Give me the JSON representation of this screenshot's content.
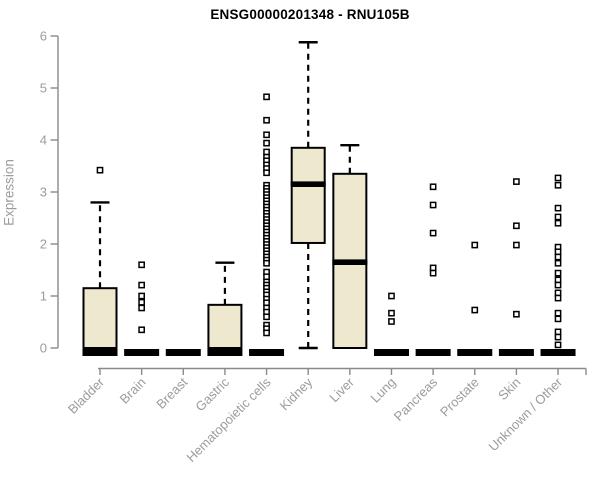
{
  "chart_data": {
    "type": "boxplot",
    "title": "ENSG00000201348 - RNU105B",
    "ylabel": "Expression",
    "xlabel": "",
    "ylim": [
      0,
      6
    ],
    "yticks": [
      0,
      1,
      2,
      3,
      4,
      5,
      6
    ],
    "grid": false,
    "colors": {
      "box_fill": "#EDE8CE",
      "box_stroke": "#000000",
      "median": "#000000",
      "axis": "#8a8a8a",
      "tick_label": "#9c9c9c",
      "title": "#000000",
      "outlier_fill": "#ffffff",
      "outlier_stroke": "#000000"
    },
    "categories": [
      "Bladder",
      "Brain",
      "Breast",
      "Gastric",
      "Hematopoietic cells",
      "Kidney",
      "Liver",
      "Lung",
      "Pancreas",
      "Prostate",
      "Skin",
      "Unknown / Other"
    ],
    "groups": [
      {
        "category": "Bladder",
        "q1": 0,
        "median": 0,
        "q3": 1.15,
        "whisker_low": 0,
        "whisker_high": 2.8,
        "outliers": [
          3.42
        ]
      },
      {
        "category": "Brain",
        "q1": 0,
        "median": 0,
        "q3": 0,
        "whisker_low": 0,
        "whisker_high": 0,
        "outliers": [
          1.6,
          1.21,
          1.0,
          0.88,
          0.77,
          0.35
        ]
      },
      {
        "category": "Breast",
        "q1": 0,
        "median": 0,
        "q3": 0,
        "whisker_low": 0,
        "whisker_high": 0,
        "outliers": []
      },
      {
        "category": "Gastric",
        "q1": 0,
        "median": 0,
        "q3": 0.83,
        "whisker_low": 0,
        "whisker_high": 1.64,
        "outliers": []
      },
      {
        "category": "Hematopoietic cells",
        "q1": 0,
        "median": 0,
        "q3": 0,
        "whisker_low": 0,
        "whisker_high": 0,
        "outliers": [
          4.83,
          4.38,
          4.1,
          3.94,
          3.77,
          3.67,
          3.6,
          3.52,
          3.45,
          3.37,
          3.13,
          3.07,
          3.01,
          2.95,
          2.89,
          2.83,
          2.77,
          2.71,
          2.65,
          2.59,
          2.53,
          2.47,
          2.41,
          2.35,
          2.29,
          2.23,
          2.17,
          2.11,
          2.05,
          1.99,
          1.93,
          1.87,
          1.81,
          1.75,
          1.69,
          1.63,
          1.46,
          1.37,
          1.27,
          1.21,
          1.15,
          1.08,
          1.02,
          0.94,
          0.87,
          0.77,
          0.69,
          0.6,
          0.44,
          0.37,
          0.29
        ]
      },
      {
        "category": "Kidney",
        "q1": 2.02,
        "median": 3.15,
        "q3": 3.85,
        "whisker_low": 0,
        "whisker_high": 5.88,
        "outliers": []
      },
      {
        "category": "Liver",
        "q1": 0,
        "median": 1.65,
        "q3": 3.35,
        "whisker_low": 0,
        "whisker_high": 3.9,
        "outliers": []
      },
      {
        "category": "Lung",
        "q1": 0,
        "median": 0,
        "q3": 0,
        "whisker_low": 0,
        "whisker_high": 0,
        "outliers": [
          1.0,
          0.67,
          0.51
        ]
      },
      {
        "category": "Pancreas",
        "q1": 0,
        "median": 0,
        "q3": 0,
        "whisker_low": 0,
        "whisker_high": 0,
        "outliers": [
          3.1,
          2.75,
          2.21,
          1.54,
          1.44
        ]
      },
      {
        "category": "Prostate",
        "q1": 0,
        "median": 0,
        "q3": 0,
        "whisker_low": 0,
        "whisker_high": 0,
        "outliers": [
          1.98,
          0.73
        ]
      },
      {
        "category": "Skin",
        "q1": 0,
        "median": 0,
        "q3": 0,
        "whisker_low": 0,
        "whisker_high": 0,
        "outliers": [
          3.2,
          2.35,
          1.98,
          0.65
        ]
      },
      {
        "category": "Unknown / Other",
        "q1": 0,
        "median": 0,
        "q3": 0,
        "whisker_low": 0,
        "whisker_high": 0,
        "outliers": [
          3.27,
          3.13,
          2.69,
          2.52,
          2.4,
          1.94,
          1.85,
          1.75,
          1.63,
          1.44,
          1.31,
          1.21,
          1.06,
          0.96,
          0.67,
          0.56,
          0.31,
          0.21,
          0.06
        ]
      }
    ]
  }
}
